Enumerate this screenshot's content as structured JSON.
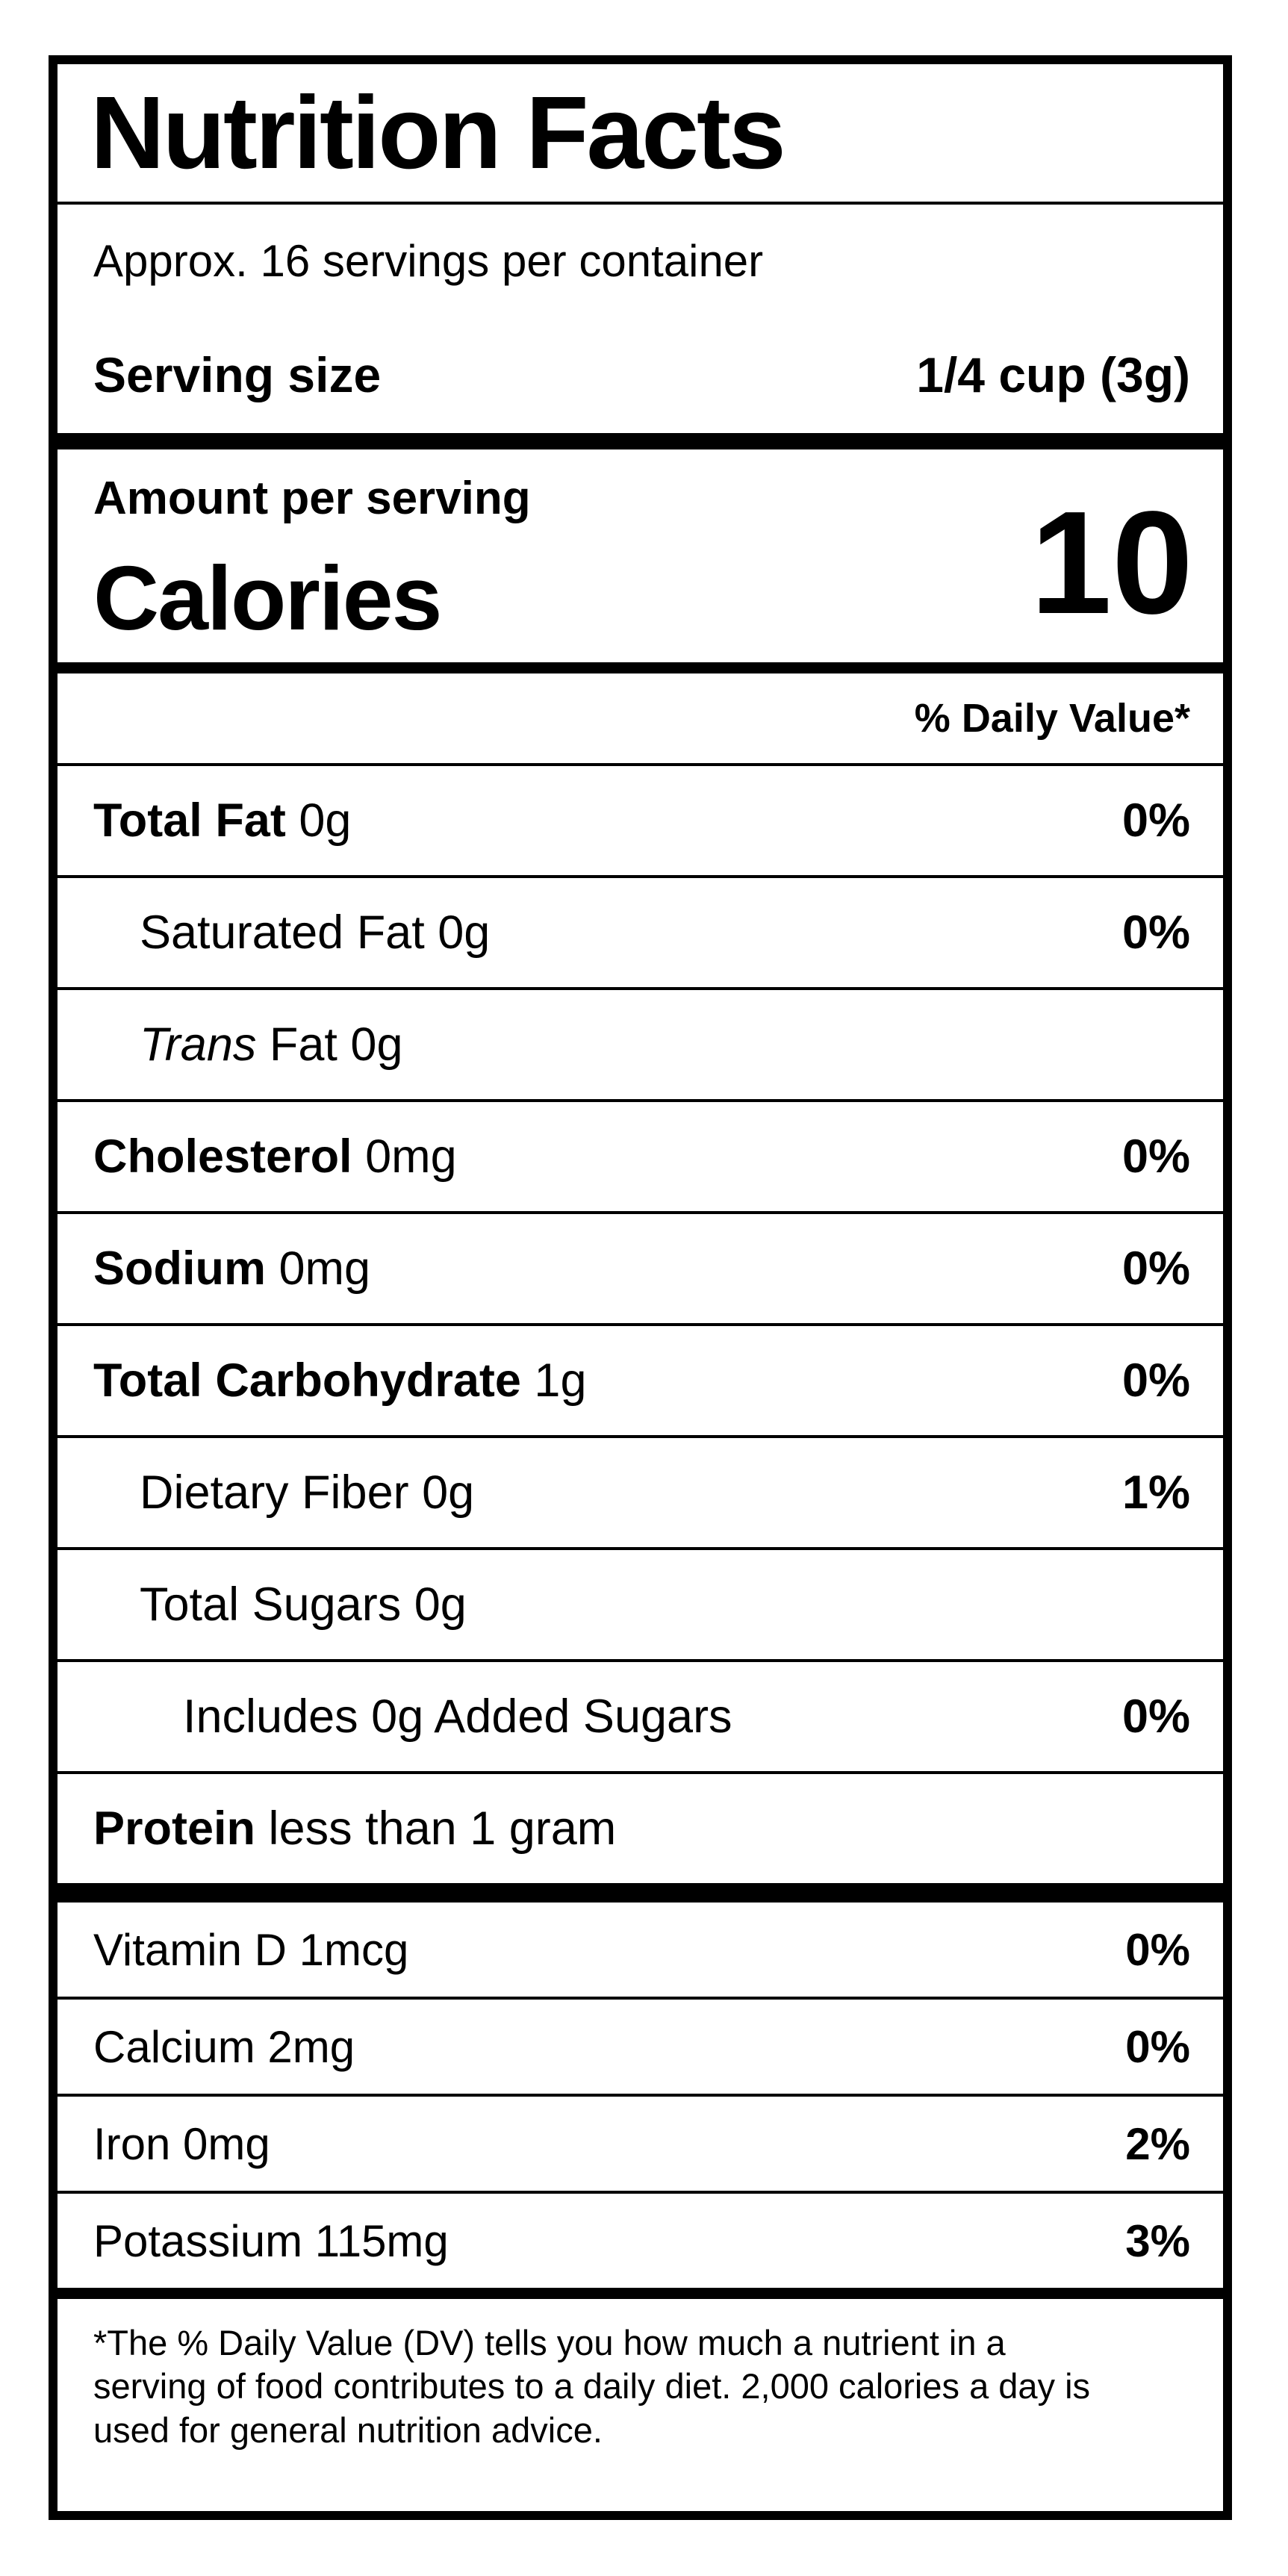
{
  "colors": {
    "ink": "#000000",
    "paper": "#ffffff"
  },
  "label": {
    "title": "Nutrition Facts",
    "servings_per_container": "Approx. 16 servings per container",
    "serving_size_label": "Serving size",
    "serving_size_value": "1/4 cup (3g)",
    "amount_per_serving": "Amount per serving",
    "calories_label": "Calories",
    "calories_value": "10",
    "daily_value_header": "% Daily Value*",
    "rows": [
      {
        "bold": "Total Fat",
        "rest": " 0g",
        "indent": 0,
        "dv": "0%"
      },
      {
        "bold": "",
        "rest": "Saturated Fat 0g",
        "indent": 1,
        "dv": "0%"
      },
      {
        "italic": "Trans",
        "rest": " Fat 0g",
        "indent": 1,
        "dv": ""
      },
      {
        "bold": "Cholesterol",
        "rest": " 0mg",
        "indent": 0,
        "dv": "0%"
      },
      {
        "bold": "Sodium",
        "rest": " 0mg",
        "indent": 0,
        "dv": "0%"
      },
      {
        "bold": "Total Carbohydrate",
        "rest": " 1g",
        "indent": 0,
        "dv": "0%"
      },
      {
        "bold": "",
        "rest": "Dietary Fiber 0g",
        "indent": 1,
        "dv": "1%"
      },
      {
        "bold": "",
        "rest": "Total Sugars 0g",
        "indent": 1,
        "dv": ""
      },
      {
        "bold": "",
        "rest": "Includes 0g Added Sugars",
        "indent": 2,
        "dv": "0%"
      },
      {
        "bold": "Protein",
        "rest": " less than 1 gram",
        "indent": 0,
        "dv": ""
      }
    ],
    "vitamins": [
      {
        "rest": "Vitamin D 1mcg",
        "dv": "0%"
      },
      {
        "rest": "Calcium 2mg",
        "dv": "0%"
      },
      {
        "rest": "Iron 0mg",
        "dv": "2%"
      },
      {
        "rest": "Potassium 115mg",
        "dv": "3%"
      }
    ],
    "footnote": "*The % Daily Value (DV) tells you how much a nutrient in a serving of food contributes to a daily diet. 2,000 calories a day is used for general nutrition advice."
  }
}
